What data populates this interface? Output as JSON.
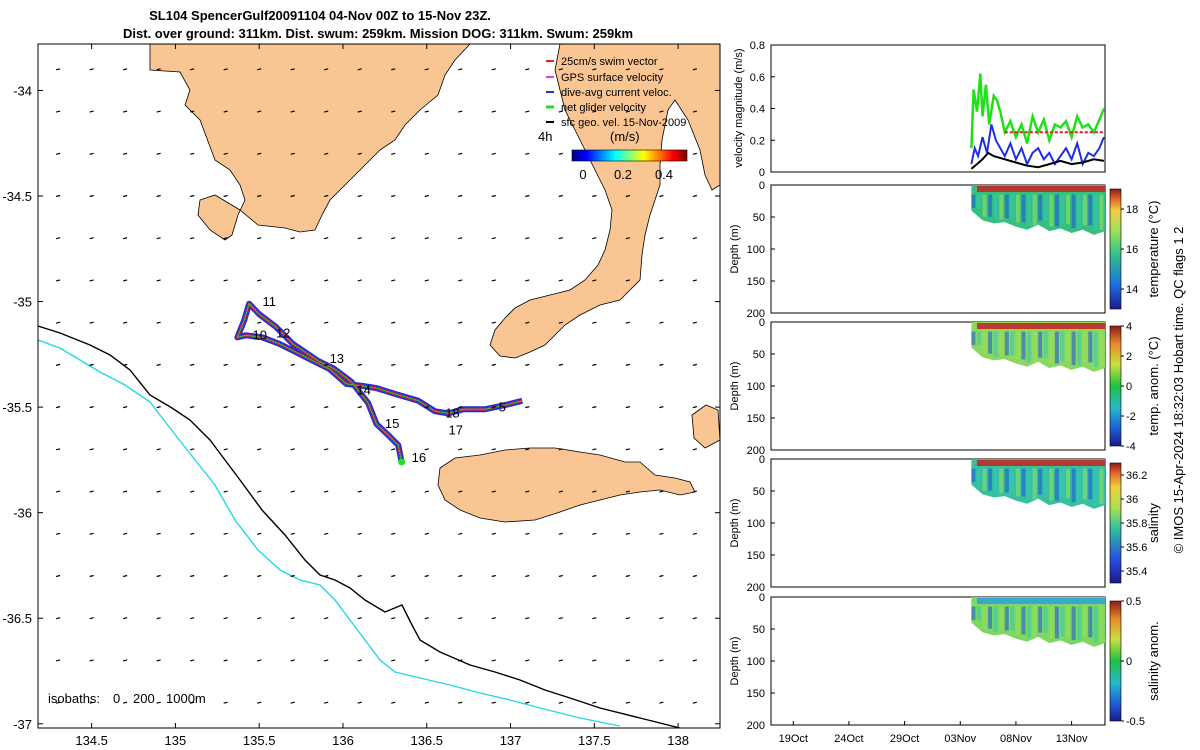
{
  "title": {
    "line1": "SL104 SpencerGulf20091104 04-Nov 00Z to 15-Nov 23Z.",
    "line2": "Dist. over ground: 311km. Dist. swum: 259km. Mission DOG: 311km. Swum: 259km"
  },
  "colors": {
    "land": "#f9c592",
    "isobath_deep": "#000000",
    "isobath_shelf": "#22d8e8",
    "track": "#e51c1c",
    "current": "#1f2fe0",
    "net_velocity": "#21e01a",
    "sfc_vector": "#000000",
    "gps": "#e040e0"
  },
  "chart_data": [
    {
      "type": "map",
      "title": "Glider track map",
      "x_ticks": [
        "134.5",
        "135",
        "135.5",
        "136",
        "136.5",
        "137",
        "137.5",
        "138"
      ],
      "y_ticks": [
        "-34",
        "-34.5",
        "-35",
        "-35.5",
        "-36",
        "-36.5",
        "-37"
      ],
      "xlim": [
        134.18,
        138.25
      ],
      "ylim": [
        -37.02,
        -33.78
      ],
      "legend": [
        {
          "label": "25cm/s swim vector",
          "color": "#e51c1c"
        },
        {
          "label": "GPS surface velocity",
          "color": "#e040e0"
        },
        {
          "label": "dive-avg current veloc.",
          "color": "#1f2fe0"
        },
        {
          "label": "net glider velocity",
          "color": "#21e01a"
        },
        {
          "label": "sfc geo. vel. 15-Nov-2009",
          "color": "#000000"
        }
      ],
      "interval_label": "4h",
      "colorbar": {
        "label": "(m/s)",
        "ticks": [
          "0",
          "0.2",
          "0.4"
        ],
        "range": [
          0,
          0.5
        ]
      },
      "day_labels": [
        {
          "label": "5",
          "lon": 136.93,
          "lat": -35.52
        },
        {
          "label": "10",
          "lon": 135.46,
          "lat": -35.18
        },
        {
          "label": "11",
          "lon": 135.52,
          "lat": -35.02
        },
        {
          "label": "12",
          "lon": 135.6,
          "lat": -35.17
        },
        {
          "label": "13",
          "lon": 135.92,
          "lat": -35.29
        },
        {
          "label": "14",
          "lon": 136.08,
          "lat": -35.44
        },
        {
          "label": "15",
          "lon": 136.25,
          "lat": -35.6
        },
        {
          "label": "16",
          "lon": 136.41,
          "lat": -35.76
        },
        {
          "label": "17",
          "lon": 136.63,
          "lat": -35.63
        },
        {
          "label": "18",
          "lon": 136.61,
          "lat": -35.55
        }
      ],
      "track": [
        [
          137.07,
          -35.47
        ],
        [
          136.97,
          -35.49
        ],
        [
          136.85,
          -35.51
        ],
        [
          136.72,
          -35.51
        ],
        [
          136.63,
          -35.53
        ],
        [
          136.55,
          -35.52
        ],
        [
          136.45,
          -35.47
        ],
        [
          136.32,
          -35.44
        ],
        [
          136.2,
          -35.41
        ],
        [
          136.12,
          -35.4
        ],
        [
          136.02,
          -35.39
        ],
        [
          135.92,
          -35.32
        ],
        [
          135.82,
          -35.28
        ],
        [
          135.72,
          -35.24
        ],
        [
          135.62,
          -35.2
        ],
        [
          135.52,
          -35.17
        ],
        [
          135.42,
          -35.16
        ],
        [
          135.37,
          -35.17
        ],
        [
          135.41,
          -35.09
        ],
        [
          135.44,
          -35.01
        ],
        [
          135.5,
          -35.06
        ],
        [
          135.6,
          -35.12
        ],
        [
          135.7,
          -35.2
        ],
        [
          135.85,
          -35.28
        ],
        [
          135.95,
          -35.32
        ],
        [
          136.05,
          -35.38
        ],
        [
          136.15,
          -35.48
        ],
        [
          136.2,
          -35.58
        ],
        [
          136.28,
          -35.64
        ],
        [
          136.33,
          -35.68
        ],
        [
          136.35,
          -35.76
        ]
      ],
      "isobath_labels": [
        "isobaths:",
        "0",
        "200",
        "1000m"
      ]
    },
    {
      "type": "line",
      "ylabel": "velocity magnitude (m/s)",
      "ylim": [
        0,
        0.8
      ],
      "y_ticks": [
        "0",
        "0.2",
        "0.4",
        "0.6",
        "0.8"
      ],
      "xlim_days": [
        0,
        30
      ],
      "series": [
        {
          "name": "net glider velocity",
          "color": "#21e01a",
          "x": [
            18.0,
            18.2,
            18.5,
            18.8,
            19.0,
            19.3,
            19.6,
            20.0,
            20.3,
            20.6,
            21.0,
            21.5,
            22.0,
            22.5,
            23.0,
            23.5,
            24.0,
            24.5,
            25.0,
            25.5,
            26.0,
            26.5,
            27.0,
            27.5,
            28.0,
            28.5,
            29.0,
            29.5,
            29.9
          ],
          "values": [
            0.15,
            0.52,
            0.38,
            0.62,
            0.35,
            0.55,
            0.3,
            0.48,
            0.45,
            0.38,
            0.25,
            0.32,
            0.22,
            0.3,
            0.18,
            0.35,
            0.25,
            0.33,
            0.2,
            0.3,
            0.28,
            0.32,
            0.22,
            0.35,
            0.28,
            0.3,
            0.25,
            0.33,
            0.4
          ]
        },
        {
          "name": "dive-avg current veloc.",
          "color": "#1f2fe0",
          "x": [
            18.0,
            18.3,
            18.6,
            19.0,
            19.4,
            19.8,
            20.2,
            20.6,
            21.0,
            21.5,
            22.0,
            22.5,
            23.0,
            23.5,
            24.0,
            24.5,
            25.0,
            25.5,
            26.0,
            26.5,
            27.0,
            27.5,
            28.0,
            28.5,
            29.0,
            29.5,
            29.9
          ],
          "values": [
            0.05,
            0.15,
            0.1,
            0.22,
            0.12,
            0.3,
            0.2,
            0.15,
            0.1,
            0.18,
            0.08,
            0.15,
            0.05,
            0.12,
            0.15,
            0.08,
            0.12,
            0.05,
            0.1,
            0.15,
            0.08,
            0.18,
            0.05,
            0.12,
            0.1,
            0.15,
            0.22
          ]
        },
        {
          "name": "sfc geo. vel.",
          "color": "#000000",
          "x": [
            18.0,
            18.5,
            19.0,
            19.5,
            20.0,
            21.0,
            22.0,
            23.0,
            24.0,
            25.0,
            26.0,
            27.0,
            28.0,
            29.0,
            29.9
          ],
          "values": [
            0.02,
            0.05,
            0.08,
            0.12,
            0.1,
            0.08,
            0.06,
            0.04,
            0.03,
            0.05,
            0.07,
            0.05,
            0.06,
            0.08,
            0.07
          ]
        },
        {
          "name": "swim (mean)",
          "color": "#e51c1c",
          "x": [
            21.0,
            29.9
          ],
          "values": [
            0.25,
            0.25
          ]
        }
      ]
    },
    {
      "type": "heatmap",
      "ylabel": "Depth (m)",
      "clabel": "temperature (°C)",
      "c_ticks": [
        "14",
        "16",
        "18"
      ],
      "crange": [
        13,
        19
      ],
      "y_ticks": [
        "0",
        "50",
        "100",
        "150",
        "200"
      ],
      "ylim": [
        0,
        200
      ]
    },
    {
      "type": "heatmap",
      "ylabel": "Depth (m)",
      "clabel": "temp. anom. (°C)",
      "c_ticks": [
        "-4",
        "-2",
        "0",
        "2",
        "4"
      ],
      "crange": [
        -4,
        4
      ],
      "y_ticks": [
        "0",
        "50",
        "100",
        "150",
        "200"
      ],
      "ylim": [
        0,
        200
      ]
    },
    {
      "type": "heatmap",
      "ylabel": "Depth (m)",
      "clabel": "salinity",
      "c_ticks": [
        "35.4",
        "35.6",
        "35.8",
        "36",
        "36.2"
      ],
      "crange": [
        35.3,
        36.3
      ],
      "y_ticks": [
        "0",
        "50",
        "100",
        "150",
        "200"
      ],
      "ylim": [
        0,
        200
      ]
    },
    {
      "type": "heatmap",
      "ylabel": "Depth (m)",
      "clabel": "salinity anom.",
      "c_ticks": [
        "-0.5",
        "0",
        "0.5"
      ],
      "crange": [
        -0.5,
        0.5
      ],
      "y_ticks": [
        "0",
        "50",
        "100",
        "150",
        "200"
      ],
      "ylim": [
        0,
        200
      ],
      "x_ticks": [
        "19Oct",
        "24Oct",
        "29Oct",
        "03Nov",
        "08Nov",
        "13Nov"
      ]
    }
  ],
  "footer": {
    "copyright": "© IMOS 15-Apr-2024 18:32:03 Hobart time. QC flags 1  2"
  }
}
